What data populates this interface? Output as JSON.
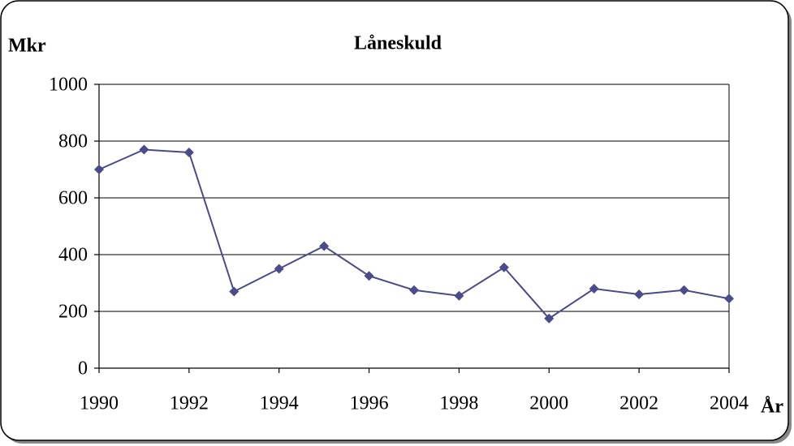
{
  "chart_data": {
    "type": "line",
    "title": "Låneskuld",
    "y_label": "Mkr",
    "x_label": "År",
    "x": [
      1990,
      1991,
      1992,
      1993,
      1994,
      1995,
      1996,
      1997,
      1998,
      1999,
      2000,
      2001,
      2002,
      2003,
      2004
    ],
    "series": [
      {
        "name": "Låneskuld",
        "color": "#4b4a8a",
        "values": [
          700,
          770,
          760,
          270,
          350,
          430,
          325,
          275,
          255,
          355,
          175,
          280,
          260,
          275,
          245
        ]
      }
    ],
    "xlim": [
      1990,
      2004
    ],
    "xticks": [
      1990,
      1992,
      1994,
      1996,
      1998,
      2000,
      2002,
      2004
    ],
    "ylim": [
      0,
      1000
    ],
    "yticks": [
      0,
      200,
      400,
      600,
      800,
      1000
    ],
    "grid": true
  }
}
